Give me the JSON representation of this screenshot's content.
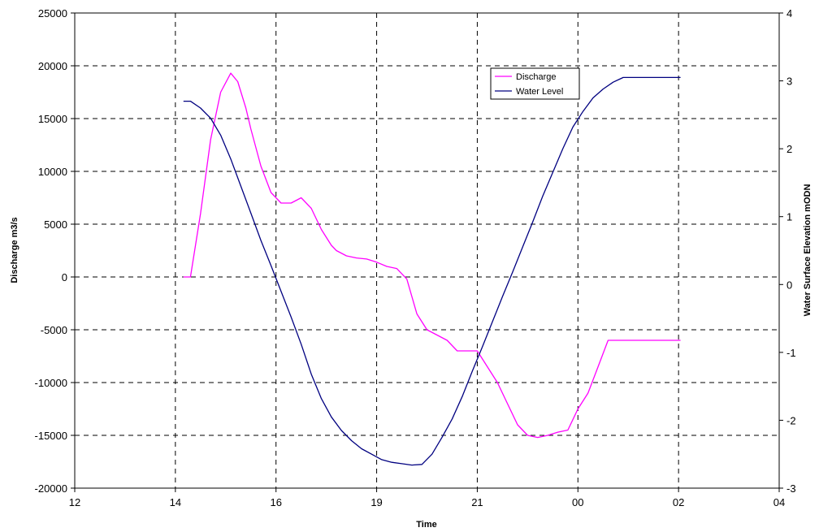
{
  "chart_data": {
    "type": "line",
    "xlabel": "Time",
    "ylabel": "Discharge m3/s",
    "y2label": "Water Surface Elevation mODN",
    "x_tick_labels": [
      "12",
      "14",
      "16",
      "19",
      "21",
      "00",
      "02",
      "04"
    ],
    "y_ticks": [
      -20000,
      -15000,
      -10000,
      -5000,
      0,
      5000,
      10000,
      15000,
      20000,
      25000
    ],
    "y2_ticks": [
      -3,
      -2,
      -1,
      0,
      1,
      2,
      3,
      4
    ],
    "ylim": [
      -20000,
      25000
    ],
    "y2lim": [
      -3,
      4
    ],
    "x_axis_range_in_tick_intervals": [
      0,
      7
    ],
    "grid": true,
    "legend_position": "top-right",
    "series": [
      {
        "name": "Discharge",
        "axis": "left",
        "color": "#ff00ff",
        "x": [
          1.08,
          1.15,
          1.25,
          1.35,
          1.45,
          1.55,
          1.62,
          1.7,
          1.75,
          1.85,
          1.95,
          2.05,
          2.15,
          2.25,
          2.35,
          2.45,
          2.55,
          2.6,
          2.7,
          2.8,
          2.9,
          3.0,
          3.1,
          3.2,
          3.3,
          3.4,
          3.5,
          3.6,
          3.7,
          3.8,
          3.9,
          4.0,
          4.1,
          4.2,
          4.3,
          4.4,
          4.5,
          4.6,
          4.7,
          4.8,
          4.9,
          5.0,
          5.1,
          5.2,
          5.3,
          5.4,
          5.5,
          5.6,
          5.7,
          5.8,
          5.9,
          6.0,
          6.02
        ],
        "values": [
          0,
          0,
          6000,
          13000,
          17500,
          19300,
          18500,
          16000,
          14000,
          10500,
          8000,
          7000,
          7000,
          7500,
          6500,
          4500,
          3000,
          2500,
          2000,
          1800,
          1700,
          1400,
          1000,
          800,
          -200,
          -3500,
          -5000,
          -5500,
          -6000,
          -7000,
          -7000,
          -7000,
          -8500,
          -10000,
          -12000,
          -14000,
          -15000,
          -15200,
          -15000,
          -14700,
          -14500,
          -12500,
          -11000,
          -8500,
          -6000,
          -6000,
          -6000,
          -6000,
          -6000,
          -6000,
          -6000,
          -6000,
          -6000
        ],
        "y_unit": "m3/s"
      },
      {
        "name": "Water Level",
        "axis": "right",
        "color": "#000080",
        "x": [
          1.08,
          1.15,
          1.25,
          1.35,
          1.45,
          1.55,
          1.65,
          1.75,
          1.85,
          1.95,
          2.05,
          2.15,
          2.25,
          2.35,
          2.45,
          2.55,
          2.65,
          2.75,
          2.85,
          2.95,
          3.05,
          3.15,
          3.25,
          3.35,
          3.45,
          3.55,
          3.65,
          3.75,
          3.85,
          3.95,
          4.05,
          4.15,
          4.25,
          4.35,
          4.45,
          4.55,
          4.65,
          4.75,
          4.85,
          4.95,
          5.05,
          5.15,
          5.25,
          5.35,
          5.45,
          5.55,
          5.65,
          5.75,
          5.85,
          5.95,
          6.02
        ],
        "values": [
          2.7,
          2.7,
          2.6,
          2.45,
          2.2,
          1.85,
          1.45,
          1.05,
          0.65,
          0.28,
          -0.1,
          -0.48,
          -0.88,
          -1.32,
          -1.68,
          -1.95,
          -2.15,
          -2.3,
          -2.42,
          -2.5,
          -2.58,
          -2.62,
          -2.64,
          -2.66,
          -2.65,
          -2.5,
          -2.25,
          -1.98,
          -1.65,
          -1.28,
          -0.92,
          -0.55,
          -0.18,
          0.18,
          0.55,
          0.92,
          1.3,
          1.65,
          2.0,
          2.32,
          2.55,
          2.75,
          2.88,
          2.98,
          3.05,
          3.05,
          3.05,
          3.05,
          3.05,
          3.05,
          3.05
        ]
      }
    ]
  }
}
